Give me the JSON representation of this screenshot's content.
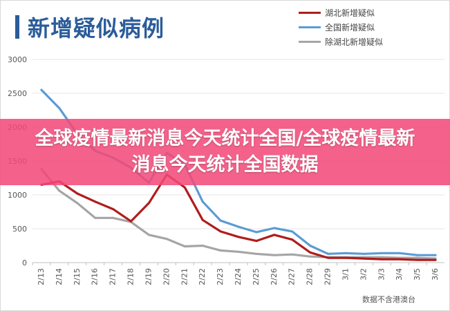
{
  "banner": {
    "text": "全球疫情最新消息今天统计全国/全球疫情最新消息今天统计全国数据"
  },
  "source_note": "数据不含港澳台",
  "colors": {
    "title": "#2b5c9a",
    "hubei": "#b01c1c",
    "national": "#5b9bd5",
    "excluding_hubei": "#a5a5a5",
    "banner": "#f24878"
  },
  "chart_data": {
    "type": "line",
    "title": "新增疑似病例",
    "xlabel": "",
    "ylabel": "",
    "ylim": [
      0,
      3000
    ],
    "yticks": [
      0,
      500,
      1000,
      1500,
      2000,
      2500,
      3000
    ],
    "grid": true,
    "legend_position": "top-right",
    "categories": [
      "2/13",
      "2/14",
      "2/15",
      "2/16",
      "2/17",
      "2/18",
      "2/19",
      "2/20",
      "2/21",
      "2/22",
      "2/23",
      "2/24",
      "2/25",
      "2/26",
      "2/27",
      "2/28",
      "2/29",
      "3/1",
      "3/2",
      "3/3",
      "3/4",
      "3/5",
      "3/6"
    ],
    "series": [
      {
        "name": "湖北新增疑似",
        "color": "#b01c1c",
        "values": [
          1150,
          1200,
          1020,
          900,
          790,
          610,
          880,
          1300,
          1110,
          630,
          460,
          380,
          320,
          410,
          340,
          150,
          70,
          70,
          60,
          50,
          50,
          40,
          40
        ]
      },
      {
        "name": "全国新增疑似",
        "color": "#5b9bd5",
        "values": [
          2550,
          2280,
          1900,
          1650,
          1550,
          1400,
          1180,
          1620,
          1450,
          900,
          620,
          530,
          450,
          510,
          460,
          250,
          130,
          140,
          130,
          140,
          140,
          110,
          110
        ]
      },
      {
        "name": "除湖北新增疑似",
        "color": "#a5a5a5",
        "values": [
          1380,
          1060,
          880,
          660,
          660,
          600,
          410,
          350,
          240,
          250,
          180,
          160,
          130,
          110,
          120,
          90,
          80,
          80,
          80,
          80,
          70,
          70,
          60
        ]
      }
    ]
  }
}
